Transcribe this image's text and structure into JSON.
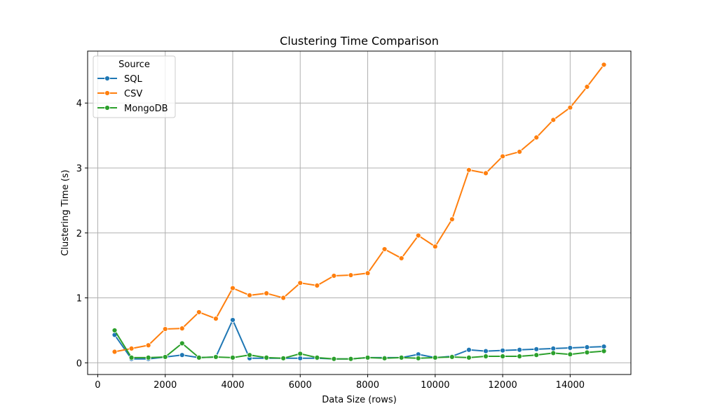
{
  "chart_data": {
    "type": "line",
    "title": "Clustering Time Comparison",
    "xlabel": "Data Size (rows)",
    "ylabel": "Clustering Time (s)",
    "xlim": [
      -300,
      15800
    ],
    "ylim": [
      -0.18,
      4.8
    ],
    "xticks": [
      0,
      2000,
      4000,
      6000,
      8000,
      10000,
      12000,
      14000
    ],
    "yticks": [
      0,
      1,
      2,
      3,
      4
    ],
    "grid": true,
    "legend": {
      "title": "Source",
      "placement": "top-left"
    },
    "x": [
      500,
      1000,
      1500,
      2000,
      2500,
      3000,
      3500,
      4000,
      4500,
      5000,
      5500,
      6000,
      6500,
      7000,
      7500,
      8000,
      8500,
      9000,
      9500,
      10000,
      10500,
      11000,
      11500,
      12000,
      12500,
      13000,
      13500,
      14000,
      14500,
      15000
    ],
    "series": [
      {
        "name": "SQL",
        "color": "#1f77b4",
        "values": [
          0.43,
          0.06,
          0.06,
          0.09,
          0.12,
          0.08,
          0.09,
          0.66,
          0.07,
          0.07,
          0.07,
          0.07,
          0.07,
          0.06,
          0.06,
          0.08,
          0.08,
          0.08,
          0.13,
          0.08,
          0.1,
          0.2,
          0.18,
          0.19,
          0.2,
          0.21,
          0.22,
          0.23,
          0.24,
          0.25
        ]
      },
      {
        "name": "CSV",
        "color": "#ff7f0e",
        "values": [
          0.17,
          0.22,
          0.27,
          0.52,
          0.53,
          0.78,
          0.68,
          1.15,
          1.04,
          1.07,
          1.0,
          1.23,
          1.19,
          1.34,
          1.35,
          1.38,
          1.75,
          1.61,
          1.96,
          1.79,
          2.21,
          2.97,
          2.92,
          3.18,
          3.25,
          3.47,
          3.74,
          3.93,
          4.25,
          4.59
        ]
      },
      {
        "name": "MongoDB",
        "color": "#2ca02c",
        "values": [
          0.5,
          0.08,
          0.08,
          0.09,
          0.3,
          0.08,
          0.09,
          0.08,
          0.12,
          0.08,
          0.07,
          0.14,
          0.08,
          0.06,
          0.06,
          0.08,
          0.07,
          0.08,
          0.07,
          0.08,
          0.09,
          0.08,
          0.1,
          0.1,
          0.1,
          0.12,
          0.15,
          0.13,
          0.16,
          0.18
        ]
      }
    ]
  }
}
